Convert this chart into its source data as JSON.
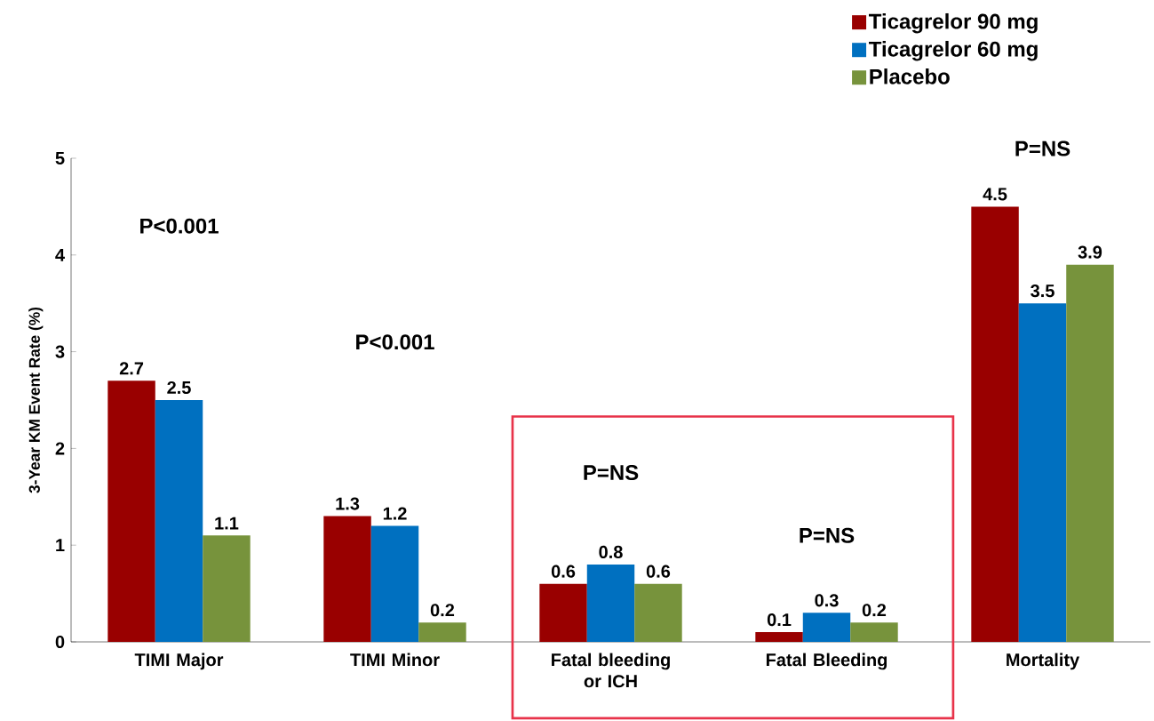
{
  "chart_data": {
    "type": "bar",
    "ylabel": "3-Year KM Event Rate (%)",
    "categories": [
      "TIMI Major",
      "TIMI Minor",
      "Fatal bleeding or ICH",
      "Fatal Bleeding",
      "Mortality"
    ],
    "series": [
      {
        "name": "Ticagrelor 90 mg",
        "color": "#990000",
        "values": [
          2.7,
          1.3,
          0.6,
          0.1,
          4.5
        ]
      },
      {
        "name": "Ticagrelor 60 mg",
        "color": "#0070c0",
        "values": [
          2.5,
          1.2,
          0.8,
          0.3,
          3.5
        ]
      },
      {
        "name": "Placebo",
        "color": "#77933c",
        "values": [
          1.1,
          0.2,
          0.6,
          0.2,
          3.9
        ]
      }
    ],
    "ylim": [
      0,
      5
    ],
    "yticks": [
      0,
      1,
      2,
      3,
      4,
      5
    ],
    "data_labels": true,
    "legend": "top right",
    "annotations": [
      "P<0.001",
      "P<0.001",
      "P=NS",
      "P=NS",
      "P=NS"
    ]
  }
}
